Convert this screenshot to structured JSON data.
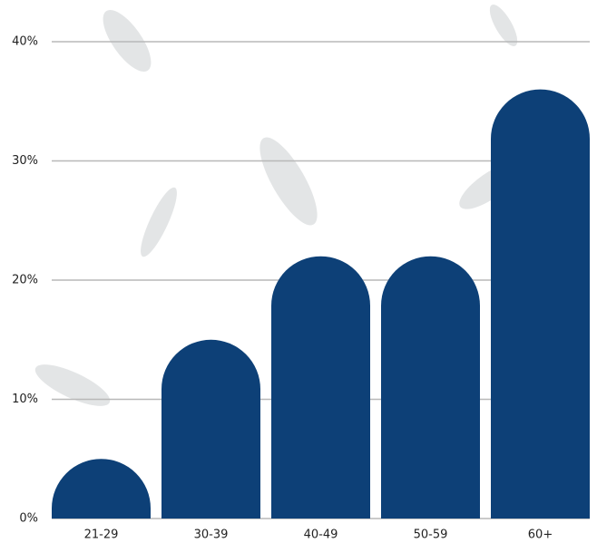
{
  "chart_data": {
    "type": "bar",
    "categories": [
      "21-29",
      "30-39",
      "40-49",
      "50-59",
      "60+"
    ],
    "values": [
      5,
      15,
      22,
      22,
      36
    ],
    "color": "#0d4077",
    "ylim": [
      0,
      40
    ],
    "yticks": [
      {
        "value": 0,
        "label": "0%"
      },
      {
        "value": 10,
        "label": "10%"
      },
      {
        "value": 20,
        "label": "20%"
      },
      {
        "value": 30,
        "label": "30%"
      },
      {
        "value": 40,
        "label": "40%"
      }
    ],
    "grid": true
  }
}
